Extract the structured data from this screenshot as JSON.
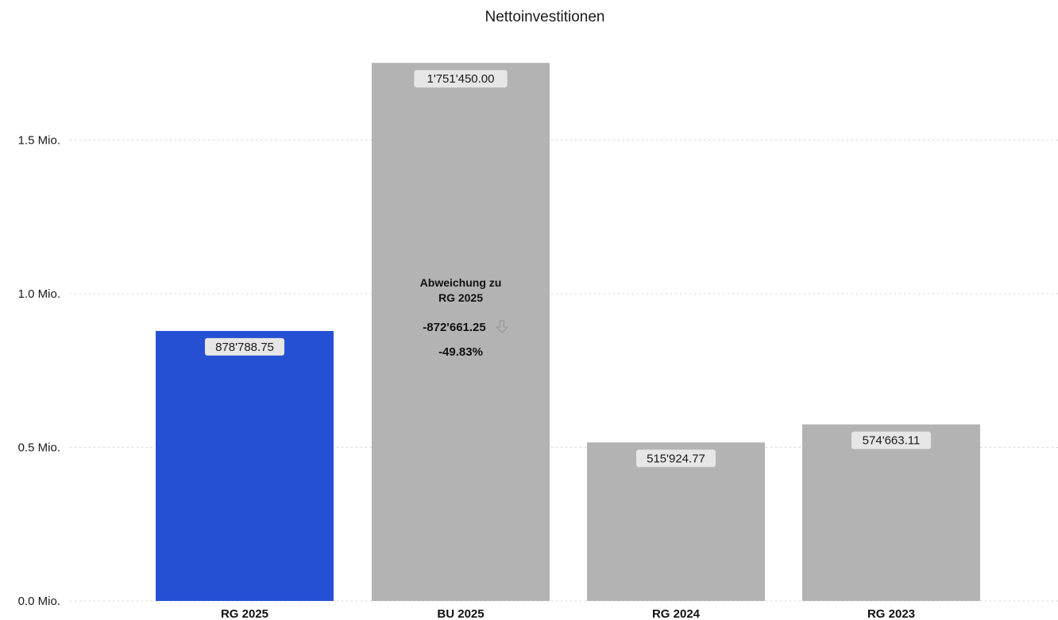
{
  "chart_data": {
    "type": "bar",
    "title": "Nettoinvestitionen",
    "categories": [
      "RG 2025",
      "BU 2025",
      "RG 2024",
      "RG 2023"
    ],
    "values": [
      878788.75,
      1751450.0,
      515924.77,
      574663.11
    ],
    "value_labels": [
      "878'788.75",
      "1'751'450.00",
      "515'924.77",
      "574'663.11"
    ],
    "highlight_index": 0,
    "colors": {
      "highlight": "#2650d4",
      "default": "#b3b3b3",
      "label_bg": "#e6e6e6",
      "grid": "#d0d0d0",
      "arrow": "#9a9a9a"
    },
    "ylim": [
      0,
      1800000
    ],
    "yticks": [
      {
        "value": 0,
        "label": "0.0 Mio."
      },
      {
        "value": 500000,
        "label": "0.5 Mio."
      },
      {
        "value": 1000000,
        "label": "1.0 Mio."
      },
      {
        "value": 1500000,
        "label": "1.5 Mio."
      }
    ],
    "grid": true,
    "legend": "none",
    "xlabel": "",
    "ylabel": "",
    "annotation": {
      "category": "BU 2025",
      "line1": "Abweichung zu",
      "line2": "RG 2025",
      "difference": "-872'661.25",
      "percent": "-49.83%",
      "icon": "arrow-down-icon"
    }
  }
}
